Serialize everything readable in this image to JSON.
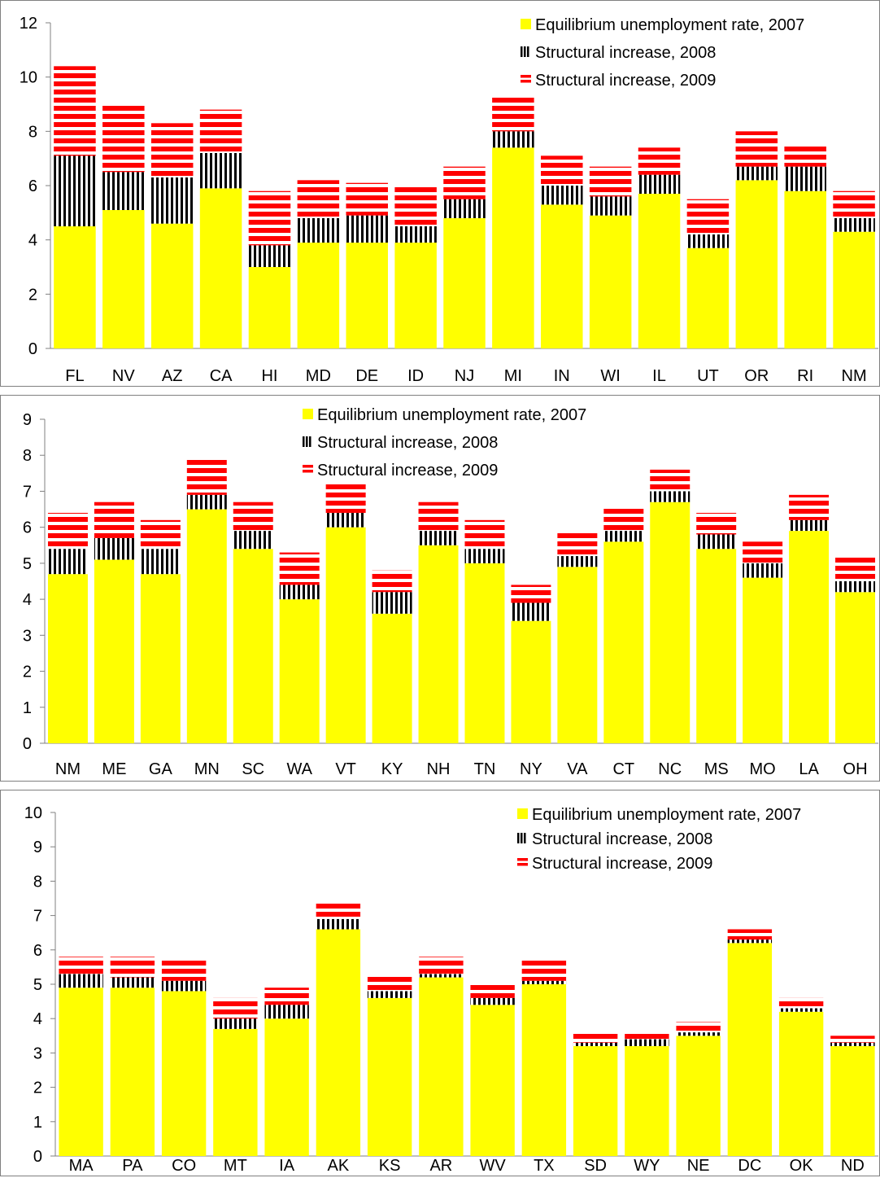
{
  "colors": {
    "base": "#ffff00",
    "stripe_2008": "#000000",
    "stripe_2009": "#ff0000",
    "frame": "#808080",
    "axis": "#808080"
  },
  "chart_data": [
    {
      "type": "bar",
      "stacked": true,
      "categories": [
        "FL",
        "NV",
        "AZ",
        "CA",
        "HI",
        "MD",
        "DE",
        "ID",
        "NJ",
        "MI",
        "IN",
        "WI",
        "IL",
        "UT",
        "OR",
        "RI",
        "NM"
      ],
      "series": [
        {
          "name": "Equilibrium unemployment rate, 2007",
          "values": [
            4.5,
            5.1,
            4.6,
            5.9,
            3.0,
            3.9,
            3.9,
            3.9,
            4.8,
            7.4,
            5.3,
            4.9,
            5.7,
            3.7,
            6.2,
            5.8,
            4.3
          ]
        },
        {
          "name": "Structural increase, 2008",
          "values": [
            2.6,
            1.4,
            1.7,
            1.3,
            0.8,
            0.9,
            1.0,
            0.6,
            0.7,
            0.6,
            0.7,
            0.7,
            0.7,
            0.5,
            0.5,
            0.9,
            0.5
          ]
        },
        {
          "name": "Structural increase, 2009",
          "values": [
            3.3,
            2.5,
            2.0,
            1.6,
            2.0,
            1.4,
            1.2,
            1.5,
            1.2,
            1.3,
            1.1,
            1.1,
            1.0,
            1.3,
            1.3,
            0.8,
            1.0
          ]
        }
      ],
      "ylim": [
        0,
        12
      ],
      "yticks": [
        0,
        2,
        4,
        6,
        8,
        10,
        12
      ],
      "legend_position": "top-right",
      "grid": false
    },
    {
      "type": "bar",
      "stacked": true,
      "categories": [
        "NM",
        "ME",
        "GA",
        "MN",
        "SC",
        "WA",
        "VT",
        "KY",
        "NH",
        "TN",
        "NY",
        "VA",
        "CT",
        "NC",
        "MS",
        "MO",
        "LA",
        "OH"
      ],
      "series": [
        {
          "name": "Equilibrium unemployment rate, 2007",
          "values": [
            4.7,
            5.1,
            4.7,
            6.5,
            5.4,
            4.0,
            6.0,
            3.6,
            5.5,
            5.0,
            3.4,
            4.9,
            5.6,
            6.7,
            5.4,
            4.6,
            5.9,
            4.2
          ]
        },
        {
          "name": "Structural increase, 2008",
          "values": [
            0.7,
            0.6,
            0.7,
            0.4,
            0.5,
            0.4,
            0.4,
            0.6,
            0.4,
            0.4,
            0.5,
            0.3,
            0.3,
            0.3,
            0.4,
            0.4,
            0.3,
            0.3
          ]
        },
        {
          "name": "Structural increase, 2009",
          "values": [
            1.0,
            1.0,
            0.8,
            1.0,
            0.8,
            0.9,
            0.8,
            0.6,
            0.8,
            0.8,
            0.5,
            0.7,
            0.7,
            0.6,
            0.6,
            0.6,
            0.7,
            0.7
          ]
        }
      ],
      "ylim": [
        0,
        9
      ],
      "yticks": [
        0,
        1,
        2,
        3,
        4,
        5,
        6,
        7,
        8,
        9
      ],
      "legend_position": "top-center",
      "grid": false
    },
    {
      "type": "bar",
      "stacked": true,
      "categories": [
        "MA",
        "PA",
        "CO",
        "MT",
        "IA",
        "AK",
        "KS",
        "AR",
        "WV",
        "TX",
        "SD",
        "WY",
        "NE",
        "DC",
        "OK",
        "ND"
      ],
      "series": [
        {
          "name": "Equilibrium unemployment rate, 2007",
          "values": [
            4.9,
            4.9,
            4.8,
            3.7,
            4.0,
            6.6,
            4.6,
            5.2,
            4.4,
            5.0,
            3.2,
            3.2,
            3.5,
            6.2,
            4.2,
            3.2
          ]
        },
        {
          "name": "Structural increase, 2008",
          "values": [
            0.4,
            0.3,
            0.3,
            0.3,
            0.4,
            0.3,
            0.2,
            0.1,
            0.2,
            0.1,
            0.1,
            0.2,
            0.1,
            0.1,
            0.1,
            0.1
          ]
        },
        {
          "name": "Structural increase, 2009",
          "values": [
            0.5,
            0.6,
            0.6,
            0.6,
            0.5,
            0.5,
            0.5,
            0.5,
            0.4,
            0.6,
            0.3,
            0.2,
            0.3,
            0.3,
            0.3,
            0.2
          ]
        }
      ],
      "ylim": [
        0,
        10
      ],
      "yticks": [
        0,
        1,
        2,
        3,
        4,
        5,
        6,
        7,
        8,
        9,
        10
      ],
      "legend_position": "top-right",
      "grid": false
    }
  ]
}
